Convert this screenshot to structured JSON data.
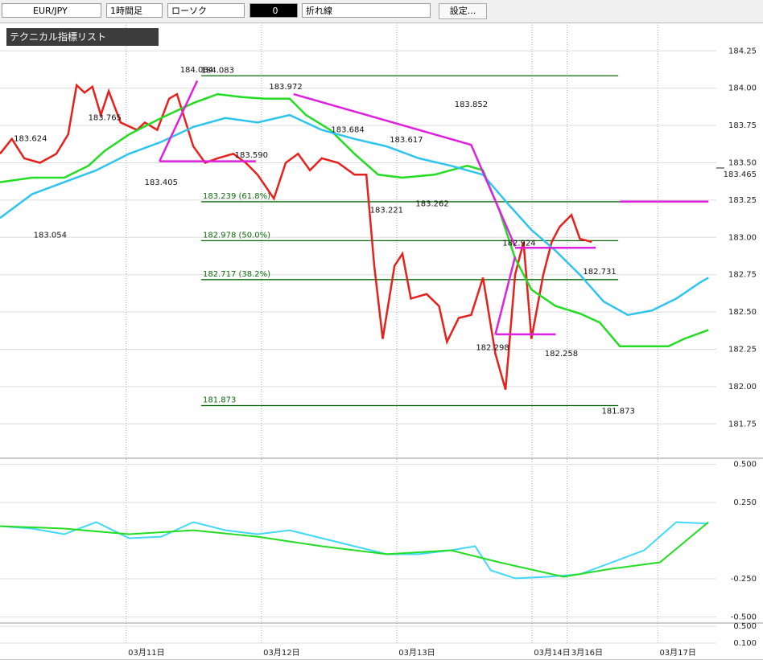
{
  "toolbar": {
    "pair": "EUR/JPY",
    "timeframe": "1時間足",
    "chart_style": "ローソク",
    "count": "0",
    "sub_style": "折れ線",
    "settings": "設定..."
  },
  "indicator_panel": {
    "title": "テクニカル指標リスト"
  },
  "chart_data": [
    {
      "type": "line",
      "name": "price",
      "xlim": [
        0,
        127.1
      ],
      "ylim": [
        181.52,
        184.44
      ],
      "xticks": [
        {
          "value": 22.4,
          "label": "03月11日"
        },
        {
          "value": 46.4,
          "label": "03月12日"
        },
        {
          "value": 70.4,
          "label": "03月13日"
        },
        {
          "value": 94.4,
          "label": "03月14日"
        },
        {
          "value": 100.6,
          "label": "3月16日"
        },
        {
          "value": 116.7,
          "label": "03月17日"
        }
      ],
      "yticks": [
        184.25,
        {
          "value": 184,
          "label": "184.00"
        },
        183.75,
        {
          "value": 183.5,
          "label": "183.50"
        },
        183.25,
        {
          "value": 183,
          "label": "183.00"
        },
        182.75,
        {
          "value": 182.5,
          "label": "182.50"
        },
        182.25,
        {
          "value": 182,
          "label": "182.00"
        },
        181.75
      ],
      "current_price": 183.465,
      "series": [
        {
          "color": "#e8201c",
          "x": [
            0,
            2.1,
            4.3,
            7.1,
            10,
            12.1,
            13.6,
            15,
            16.4,
            17.9,
            19.3,
            21.4,
            24.3,
            25.7,
            27.9,
            30,
            31.4,
            34.3,
            36.4,
            38.6,
            41.4,
            43.6,
            45.7,
            48.6,
            50.7,
            52.9,
            55,
            57.1,
            60,
            62.9,
            65,
            66.4,
            67.9,
            70,
            71.4,
            72.9,
            75.7,
            77.9,
            79.3,
            81.4,
            83.6,
            85.7,
            87.9,
            89.7,
            91.4,
            92.9,
            94.3,
            96.4,
            97.9,
            99.3,
            101.4,
            102.9,
            105
          ],
          "values": [
            183.56,
            183.66,
            183.53,
            183.5,
            183.56,
            183.69,
            184.02,
            183.97,
            184.01,
            183.82,
            183.98,
            183.77,
            183.72,
            183.77,
            183.72,
            183.93,
            183.96,
            183.61,
            183.5,
            183.53,
            183.56,
            183.5,
            183.42,
            183.26,
            183.5,
            183.56,
            183.45,
            183.53,
            183.5,
            183.42,
            183.42,
            182.81,
            182.32,
            182.81,
            182.89,
            182.59,
            182.62,
            182.54,
            182.3,
            182.46,
            182.48,
            182.73,
            182.22,
            181.98,
            182.75,
            182.97,
            182.32,
            182.75,
            182.97,
            183.07,
            183.15,
            182.99,
            182.97
          ]
        },
        {
          "color": "#22dd22",
          "x": [
            0,
            5.7,
            11.4,
            15.7,
            18.6,
            22.9,
            28.6,
            34.3,
            38.6,
            42.9,
            47.1,
            51.4,
            54.3,
            58.6,
            62.9,
            67.1,
            71.4,
            77.1,
            82.9,
            85.7,
            88.6,
            91.4,
            94.3,
            98.6,
            102.9,
            106.4,
            110,
            114.3,
            118.6,
            121.4,
            125.7
          ],
          "values": [
            183.37,
            183.4,
            183.4,
            183.48,
            183.58,
            183.69,
            183.8,
            183.9,
            183.96,
            183.94,
            183.93,
            183.93,
            183.82,
            183.72,
            183.56,
            183.42,
            183.4,
            183.42,
            183.48,
            183.45,
            183.18,
            182.86,
            182.65,
            182.54,
            182.49,
            182.43,
            182.27,
            182.27,
            182.27,
            182.32,
            182.38
          ]
        },
        {
          "color": "#2ec4f0",
          "x": [
            0,
            5.7,
            11.4,
            17.1,
            22.9,
            28.6,
            34.3,
            40,
            45.7,
            51.4,
            57.1,
            62.9,
            68.6,
            74.3,
            80,
            85.7,
            90,
            94.3,
            98.6,
            102.9,
            107.1,
            111.4,
            115.7,
            120,
            124.3,
            125.7
          ],
          "values": [
            183.13,
            183.29,
            183.37,
            183.45,
            183.56,
            183.64,
            183.74,
            183.8,
            183.77,
            183.82,
            183.72,
            183.66,
            183.61,
            183.53,
            183.48,
            183.42,
            183.23,
            183.05,
            182.91,
            182.75,
            182.57,
            182.48,
            182.51,
            182.59,
            182.7,
            182.73
          ]
        },
        {
          "color": "#e020e0",
          "x": [
            28.3,
            35,
            null,
            28.3,
            45.4,
            null,
            52.1,
            83.6,
            91.4,
            null,
            91.4,
            105.7,
            null,
            87.9,
            91.4,
            null,
            87.9,
            98.6,
            null,
            110,
            125.7
          ],
          "values": [
            183.51,
            184.05,
            null,
            183.51,
            183.51,
            null,
            183.96,
            183.62,
            182.94,
            null,
            182.93,
            182.93,
            null,
            182.35,
            182.87,
            null,
            182.35,
            182.35,
            null,
            183.24,
            183.24
          ]
        }
      ],
      "levels": [
        {
          "value": 184.083,
          "x0": 35.7,
          "x1": 109.7
        },
        {
          "value": 183.239,
          "label": "183.239 (61.8%)",
          "x0": 35.7,
          "x1": 125.7
        },
        {
          "value": 182.978,
          "label": "182.978 (50.0%)",
          "x0": 35.7,
          "x1": 109.7
        },
        {
          "value": 182.717,
          "label": "182.717 (38.2%)",
          "x0": 35.7,
          "x1": 109.7
        },
        {
          "value": 181.873,
          "label": "181.873",
          "x0": 35.7,
          "x1": 109.7
        }
      ],
      "annotations": [
        {
          "x": 5.4,
          "value": 183.624,
          "label": "183.624",
          "pos": "above"
        },
        {
          "x": 18.6,
          "value": 183.765,
          "label": "183.765",
          "pos": "above"
        },
        {
          "x": 34.9,
          "value": 184.084,
          "label": "184.084",
          "pos": "above"
        },
        {
          "x": 38.6,
          "value": 184.083,
          "label": "184.083",
          "pos": "above"
        },
        {
          "x": 50.7,
          "value": 183.972,
          "label": "183.972",
          "pos": "above"
        },
        {
          "x": 61.7,
          "value": 183.684,
          "label": "183.684",
          "pos": "above"
        },
        {
          "x": 72.1,
          "value": 183.617,
          "label": "183.617",
          "pos": "above"
        },
        {
          "x": 83.6,
          "value": 183.852,
          "label": "183.852",
          "pos": "above"
        },
        {
          "x": 44.6,
          "value": 183.59,
          "label": "183.590",
          "pos": "below"
        },
        {
          "x": 28.6,
          "value": 183.405,
          "label": "183.405",
          "pos": "below"
        },
        {
          "x": 8.9,
          "value": 183.054,
          "label": "183.054",
          "pos": "below"
        },
        {
          "x": 68.6,
          "value": 183.221,
          "label": "183.221",
          "pos": "below"
        },
        {
          "x": 76.7,
          "value": 183.262,
          "label": "183.262",
          "pos": "below"
        },
        {
          "x": 92.1,
          "value": 182.924,
          "label": "182.924",
          "pos": "above"
        },
        {
          "x": 106.4,
          "value": 182.731,
          "label": "182.731",
          "pos": "above"
        },
        {
          "x": 87.4,
          "value": 182.298,
          "label": "182.298",
          "pos": "below"
        },
        {
          "x": 99.6,
          "value": 182.258,
          "label": "182.258",
          "pos": "below"
        },
        {
          "x": 109.7,
          "value": 181.873,
          "label": "181.873",
          "pos": "below"
        }
      ]
    },
    {
      "type": "line",
      "name": "macd",
      "xlim": [
        0,
        127.1
      ],
      "ylim": [
        -0.54,
        0.54
      ],
      "yticks": [
        {
          "value": 0.5,
          "label": "0.500"
        },
        {
          "value": 0.25,
          "label": "0.250"
        },
        {
          "value": -0.25,
          "label": "-0.250"
        },
        {
          "value": -0.5,
          "label": "-0.500"
        }
      ],
      "series": [
        {
          "color": "#40d8f8",
          "x": [
            0,
            5.7,
            11.4,
            17.1,
            22.9,
            28.6,
            34.3,
            40,
            45.7,
            51.4,
            57.1,
            62.9,
            68.6,
            74.3,
            80,
            84.3,
            87.1,
            91.4,
            97.1,
            102.9,
            108.6,
            114.3,
            120,
            125.7
          ],
          "values": [
            0.095,
            0.079,
            0.042,
            0.121,
            0.016,
            0.026,
            0.121,
            0.068,
            0.042,
            0.068,
            0.016,
            -0.037,
            -0.089,
            -0.089,
            -0.063,
            -0.037,
            -0.195,
            -0.247,
            -0.237,
            -0.221,
            -0.142,
            -0.063,
            0.121,
            0.111
          ]
        },
        {
          "color": "#22dd22",
          "x": [
            0,
            11.4,
            22.9,
            34.3,
            45.7,
            57.1,
            68.6,
            80,
            88.6,
            100,
            108.6,
            117.1,
            125.7
          ],
          "values": [
            0.095,
            0.079,
            0.042,
            0.068,
            0.026,
            -0.037,
            -0.089,
            -0.063,
            -0.142,
            -0.237,
            -0.184,
            -0.142,
            0.121
          ]
        }
      ]
    },
    {
      "type": "line",
      "name": "sub",
      "xlim": [
        0,
        127.1
      ],
      "ylim": [
        -0.3,
        0.576
      ],
      "yticks": [
        {
          "value": 0.5,
          "label": "0.500"
        },
        {
          "value": 0.1,
          "label": "0.100"
        }
      ]
    }
  ]
}
